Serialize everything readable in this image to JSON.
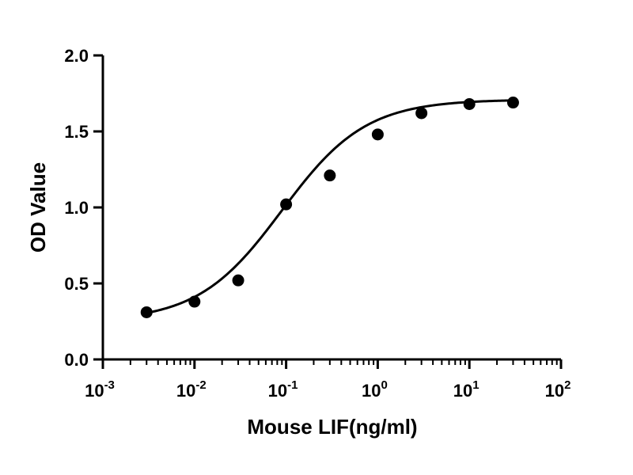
{
  "chart_data": {
    "type": "scatter",
    "xlabel": "Mouse LIF(ng/ml)",
    "ylabel": "OD Value",
    "x_scale": "log",
    "xlim": [
      0.001,
      100
    ],
    "ylim": [
      0,
      2.0
    ],
    "grid": false,
    "x_ticks": [
      {
        "base": "10",
        "exp": "-3",
        "value": 0.001
      },
      {
        "base": "10",
        "exp": "-2",
        "value": 0.01
      },
      {
        "base": "10",
        "exp": "-1",
        "value": 0.1
      },
      {
        "base": "10",
        "exp": "0",
        "value": 1
      },
      {
        "base": "10",
        "exp": "1",
        "value": 10
      },
      {
        "base": "10",
        "exp": "2",
        "value": 100
      }
    ],
    "y_ticks": [
      {
        "label": "0.0",
        "value": 0.0
      },
      {
        "label": "0.5",
        "value": 0.5
      },
      {
        "label": "1.0",
        "value": 1.0
      },
      {
        "label": "1.5",
        "value": 1.5
      },
      {
        "label": "2.0",
        "value": 2.0
      }
    ],
    "points": [
      {
        "x": 0.003,
        "y": 0.31
      },
      {
        "x": 0.01,
        "y": 0.38
      },
      {
        "x": 0.03,
        "y": 0.52
      },
      {
        "x": 0.1,
        "y": 1.02
      },
      {
        "x": 0.3,
        "y": 1.21
      },
      {
        "x": 1,
        "y": 1.48
      },
      {
        "x": 3,
        "y": 1.62
      },
      {
        "x": 10,
        "y": 1.68
      },
      {
        "x": 30,
        "y": 1.69
      }
    ],
    "fit": {
      "model": "4PL",
      "bottom": 0.25,
      "top": 1.71,
      "ec50": 0.09,
      "hill": 0.95
    }
  }
}
